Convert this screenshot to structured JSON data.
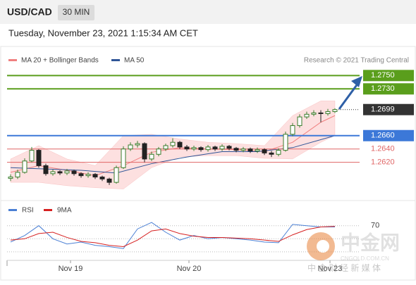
{
  "chart_data": {
    "type": "candlestick",
    "symbol": "USD/CAD",
    "timeframe": "30 MIN",
    "timestamp": "Tuesday, November 23, 2021 1:15:34 AM CET",
    "credit": "Research © 2021 Trading Central",
    "xlim": [
      -0.5,
      46.5
    ],
    "ylim": [
      1.2568,
      1.2763
    ],
    "xticks": [
      {
        "value": 8.5,
        "label": "Nov 19"
      },
      {
        "value": 25.3,
        "label": "Nov 20"
      },
      {
        "value": 45.3,
        "label": "Nov 23"
      }
    ],
    "candles": {
      "up_color": "#3a7d2c",
      "down_color": "#222222",
      "open": [
        1.2596,
        1.2598,
        1.2605,
        1.2622,
        1.2638,
        1.2615,
        1.2603,
        1.2606,
        1.2604,
        1.2607,
        1.2603,
        1.26,
        1.2602,
        1.2598,
        1.2595,
        1.259,
        1.2612,
        1.264,
        1.2646,
        1.2648,
        1.2625,
        1.2632,
        1.264,
        1.2645,
        1.265,
        1.2643,
        1.264,
        1.2642,
        1.2639,
        1.2643,
        1.264,
        1.2644,
        1.2641,
        1.2638,
        1.264,
        1.2637,
        1.2639,
        1.2634,
        1.2632,
        1.2638,
        1.2662,
        1.2675,
        1.2688,
        1.2692,
        1.2694,
        1.2693,
        1.2696
      ],
      "high": [
        1.2602,
        1.2609,
        1.2626,
        1.2643,
        1.264,
        1.2618,
        1.2609,
        1.2608,
        1.261,
        1.2609,
        1.2605,
        1.2605,
        1.2604,
        1.26,
        1.2597,
        1.2615,
        1.2644,
        1.265,
        1.2652,
        1.265,
        1.2636,
        1.2643,
        1.2648,
        1.2656,
        1.2652,
        1.2646,
        1.2645,
        1.2644,
        1.2646,
        1.2645,
        1.2647,
        1.2646,
        1.2643,
        1.2643,
        1.2642,
        1.2642,
        1.2641,
        1.2637,
        1.2641,
        1.2666,
        1.2679,
        1.2692,
        1.2696,
        1.2698,
        1.2698,
        1.27,
        1.2701
      ],
      "low": [
        1.2592,
        1.2595,
        1.2603,
        1.262,
        1.2612,
        1.26,
        1.26,
        1.2601,
        1.2601,
        1.26,
        1.2597,
        1.2597,
        1.2595,
        1.2592,
        1.2586,
        1.2588,
        1.261,
        1.2637,
        1.2642,
        1.262,
        1.2622,
        1.2629,
        1.2637,
        1.2642,
        1.264,
        1.2637,
        1.2637,
        1.2636,
        1.2636,
        1.2637,
        1.2637,
        1.2638,
        1.2635,
        1.2635,
        1.2634,
        1.2634,
        1.2631,
        1.2628,
        1.2629,
        1.2636,
        1.2659,
        1.2672,
        1.2685,
        1.2689,
        1.268,
        1.269,
        1.2694
      ],
      "close": [
        1.2598,
        1.2605,
        1.2622,
        1.2638,
        1.2615,
        1.2603,
        1.2606,
        1.2604,
        1.2607,
        1.2603,
        1.26,
        1.2602,
        1.2598,
        1.2595,
        1.259,
        1.2612,
        1.264,
        1.2646,
        1.2648,
        1.2625,
        1.2632,
        1.264,
        1.2645,
        1.265,
        1.2643,
        1.264,
        1.2642,
        1.2639,
        1.2643,
        1.264,
        1.2644,
        1.2641,
        1.2638,
        1.264,
        1.2637,
        1.2639,
        1.2634,
        1.2632,
        1.2638,
        1.2662,
        1.2675,
        1.2688,
        1.2692,
        1.2694,
        1.2693,
        1.2696,
        1.2699
      ]
    },
    "series": [
      {
        "name": "MA 20 + Bollinger Bands",
        "color": "#f08080",
        "band_color": "#fde0e0",
        "x": [
          0,
          4,
          8,
          12,
          16,
          20,
          24,
          28,
          32,
          36,
          40,
          44,
          46
        ],
        "values": [
          1.2605,
          1.2615,
          1.2608,
          1.26,
          1.2615,
          1.2635,
          1.2642,
          1.264,
          1.2639,
          1.2636,
          1.265,
          1.268,
          1.269
        ],
        "upper": [
          1.2625,
          1.2645,
          1.2625,
          1.2615,
          1.266,
          1.2662,
          1.2655,
          1.265,
          1.2648,
          1.2645,
          1.269,
          1.2712,
          1.2712
        ],
        "lower": [
          1.259,
          1.259,
          1.2585,
          1.2582,
          1.258,
          1.2612,
          1.2628,
          1.263,
          1.263,
          1.2626,
          1.2625,
          1.265,
          1.266
        ]
      },
      {
        "name": "MA 50",
        "color": "#2f5597",
        "x": [
          0,
          10,
          15,
          20,
          25,
          30,
          35,
          40,
          46
        ],
        "values": [
          1.2612,
          1.2608,
          1.2604,
          1.2618,
          1.2628,
          1.2636,
          1.2636,
          1.2642,
          1.266
        ]
      }
    ],
    "levels": [
      {
        "value": 1.275,
        "label": "1.2750",
        "color": "#5a9e1c",
        "style": "box"
      },
      {
        "value": 1.273,
        "label": "1.2730",
        "color": "#5a9e1c",
        "style": "box"
      },
      {
        "value": 1.2699,
        "label": "1.2699",
        "color": "#333333",
        "style": "dotted"
      },
      {
        "value": 1.266,
        "label": "1.2660",
        "color": "#3c78d8",
        "style": "box"
      },
      {
        "value": 1.264,
        "label": "1.2640",
        "color": "#e06666",
        "style": "text"
      },
      {
        "value": 1.262,
        "label": "1.2620",
        "color": "#e06666",
        "style": "text"
      }
    ],
    "rsi": {
      "ylim": [
        17,
        103
      ],
      "yticks": [
        70
      ],
      "hlines": [
        30,
        50,
        70
      ],
      "x": [
        0,
        2,
        4,
        6,
        8,
        10,
        12,
        14,
        16,
        18,
        20,
        22,
        24,
        26,
        28,
        30,
        32,
        34,
        36,
        38,
        40,
        42,
        44,
        46
      ],
      "series": [
        {
          "name": "RSI",
          "color": "#4a7fd4",
          "values": [
            45,
            55,
            70,
            50,
            42,
            45,
            40,
            38,
            35,
            65,
            75,
            60,
            48,
            55,
            50,
            52,
            50,
            48,
            45,
            44,
            72,
            70,
            68,
            68
          ]
        },
        {
          "name": "9MA",
          "color": "#d62020",
          "values": [
            48,
            50,
            58,
            60,
            52,
            46,
            44,
            40,
            38,
            48,
            62,
            65,
            58,
            54,
            52,
            52,
            51,
            50,
            48,
            46,
            56,
            64,
            68,
            69
          ]
        }
      ]
    }
  },
  "watermark": {
    "name": "中金网",
    "domain": "CNGOLD.COM.CN",
    "slogan": "中 金 财 经 新 媒 体"
  }
}
